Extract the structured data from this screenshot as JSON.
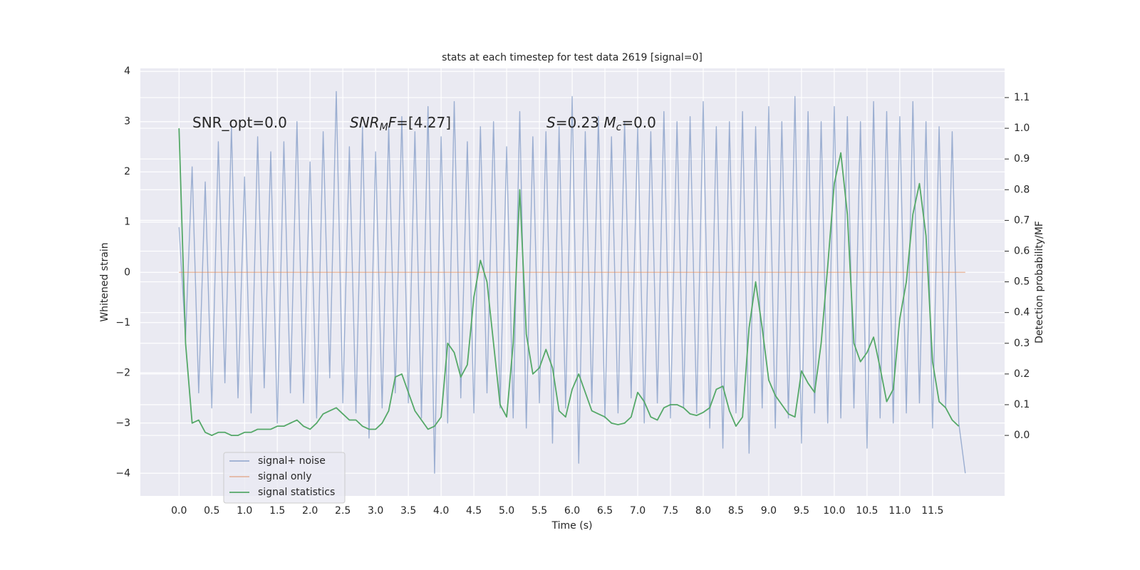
{
  "chart_data": {
    "type": "line",
    "title": "stats at each timestep for test data 2619 [signal=0]",
    "xlabel": "Time (s)",
    "ylabel": "Whitened strain",
    "y2label": "Detection probability/MF",
    "grid": true,
    "xlim": [
      -0.59,
      12.6
    ],
    "ylim": [
      -4.45,
      4.06
    ],
    "y2lim": [
      -0.197,
      1.195
    ],
    "xticks": [
      {
        "value": 0,
        "label": "0.0"
      },
      {
        "value": 0.5,
        "label": "0.5"
      },
      {
        "value": 1,
        "label": "1.0"
      },
      {
        "value": 1.5,
        "label": "1.5"
      },
      {
        "value": 2,
        "label": "2.0"
      },
      {
        "value": 2.5,
        "label": "2.5"
      },
      {
        "value": 3,
        "label": "3.0"
      },
      {
        "value": 3.5,
        "label": "3.5"
      },
      {
        "value": 4,
        "label": "4.0"
      },
      {
        "value": 4.5,
        "label": "4.5"
      },
      {
        "value": 5,
        "label": "5.0"
      },
      {
        "value": 5.5,
        "label": "5.5"
      },
      {
        "value": 6,
        "label": "6.0"
      },
      {
        "value": 6.5,
        "label": "6.5"
      },
      {
        "value": 7,
        "label": "7.0"
      },
      {
        "value": 7.5,
        "label": "7.5"
      },
      {
        "value": 8,
        "label": "8.0"
      },
      {
        "value": 8.5,
        "label": "8.5"
      },
      {
        "value": 9,
        "label": "9.0"
      },
      {
        "value": 9.5,
        "label": "9.5"
      },
      {
        "value": 10,
        "label": "10.0"
      },
      {
        "value": 10.5,
        "label": "10.5"
      },
      {
        "value": 11,
        "label": "11.0"
      },
      {
        "value": 11.5,
        "label": "11.5"
      }
    ],
    "yticks": [
      {
        "value": -4,
        "label": "−4"
      },
      {
        "value": -3,
        "label": "−3"
      },
      {
        "value": -2,
        "label": "−2"
      },
      {
        "value": -1,
        "label": "−1"
      },
      0,
      1,
      2,
      3,
      4
    ],
    "y2ticks": [
      {
        "value": 0,
        "label": "0.0"
      },
      {
        "value": 0.1,
        "label": "0.1"
      },
      {
        "value": 0.2,
        "label": "0.2"
      },
      {
        "value": 0.3,
        "label": "0.3"
      },
      {
        "value": 0.4,
        "label": "0.4"
      },
      {
        "value": 0.5,
        "label": "0.5"
      },
      {
        "value": 0.6,
        "label": "0.6"
      },
      {
        "value": 0.7,
        "label": "0.7"
      },
      {
        "value": 0.8,
        "label": "0.8"
      },
      {
        "value": 0.9,
        "label": "0.9"
      },
      {
        "value": 1,
        "label": "1.0"
      },
      {
        "value": 1.1,
        "label": "1.1"
      }
    ],
    "annotations": [
      [
        {
          "text": "SNR_opt=0.0",
          "style": "normal"
        }
      ],
      [
        {
          "text": "SNR",
          "style": "italic"
        },
        {
          "text": "M",
          "style": "sub"
        },
        {
          "text": "F",
          "style": "italic"
        },
        {
          "text": "=[4.27]",
          "style": "normal"
        }
      ],
      [
        {
          "text": "S",
          "style": "italic"
        },
        {
          "text": "=0.23   ",
          "style": "normal"
        },
        {
          "text": "M",
          "style": "italic"
        },
        {
          "text": "c",
          "style": "sub"
        },
        {
          "text": "=0.0",
          "style": "normal"
        }
      ]
    ],
    "series": [
      {
        "name": "signal+ noise",
        "color": "#4c72b0",
        "alpha": 0.5,
        "axis": "y",
        "x": [
          0.0,
          0.1,
          0.2,
          0.3,
          0.4,
          0.5,
          0.6,
          0.7,
          0.8,
          0.9,
          1.0,
          1.1,
          1.2,
          1.3,
          1.4,
          1.5,
          1.6,
          1.7,
          1.8,
          1.9,
          2.0,
          2.1,
          2.2,
          2.3,
          2.4,
          2.5,
          2.6,
          2.7,
          2.8,
          2.9,
          3.0,
          3.1,
          3.2,
          3.3,
          3.4,
          3.5,
          3.6,
          3.7,
          3.8,
          3.9,
          4.0,
          4.1,
          4.2,
          4.3,
          4.4,
          4.5,
          4.6,
          4.7,
          4.8,
          4.9,
          5.0,
          5.1,
          5.2,
          5.3,
          5.4,
          5.5,
          5.6,
          5.7,
          5.8,
          5.9,
          6.0,
          6.1,
          6.2,
          6.3,
          6.4,
          6.5,
          6.6,
          6.7,
          6.8,
          6.9,
          7.0,
          7.1,
          7.2,
          7.3,
          7.4,
          7.5,
          7.6,
          7.7,
          7.8,
          7.9,
          8.0,
          8.1,
          8.2,
          8.3,
          8.4,
          8.5,
          8.6,
          8.7,
          8.8,
          8.9,
          9.0,
          9.1,
          9.2,
          9.3,
          9.4,
          9.5,
          9.6,
          9.7,
          9.8,
          9.9,
          10.0,
          10.1,
          10.2,
          10.3,
          10.4,
          10.5,
          10.6,
          10.7,
          10.8,
          10.9,
          11.0,
          11.1,
          11.2,
          11.3,
          11.4,
          11.5,
          11.6,
          11.7,
          11.8,
          11.9,
          12.0
        ],
        "values": [
          0.9,
          -1.3,
          2.1,
          -2.4,
          1.8,
          -2.7,
          2.6,
          -2.2,
          2.9,
          -2.5,
          1.9,
          -2.8,
          2.7,
          -2.3,
          2.4,
          -3.0,
          2.6,
          -2.4,
          3.0,
          -2.6,
          2.2,
          -2.9,
          2.8,
          -2.1,
          3.6,
          -2.6,
          2.5,
          -2.8,
          2.9,
          -3.3,
          2.4,
          -2.7,
          2.9,
          -2.4,
          3.1,
          -2.6,
          2.8,
          -2.9,
          3.3,
          -4.0,
          2.7,
          -3.0,
          3.4,
          -2.5,
          2.6,
          -2.8,
          2.9,
          -2.4,
          3.0,
          -2.7,
          2.5,
          -2.9,
          3.2,
          -3.1,
          2.7,
          -2.6,
          2.8,
          -3.4,
          2.9,
          -2.7,
          3.5,
          -3.8,
          2.8,
          -2.6,
          3.1,
          -2.9,
          2.7,
          -2.8,
          3.0,
          -2.5,
          2.9,
          -3.0,
          2.8,
          -2.6,
          3.2,
          -2.9,
          3.0,
          -2.7,
          3.1,
          -2.8,
          3.4,
          -3.1,
          2.9,
          -3.5,
          3.0,
          -2.8,
          3.2,
          -3.6,
          2.9,
          -2.7,
          3.3,
          -3.1,
          3.0,
          -2.9,
          3.5,
          -3.4,
          3.2,
          -2.8,
          3.0,
          -3.0,
          3.3,
          -2.9,
          3.1,
          -2.7,
          3.0,
          -3.5,
          3.4,
          -2.9,
          3.2,
          -3.0,
          3.1,
          -2.8,
          3.4,
          -2.6,
          3.0,
          -3.1,
          2.9,
          -2.7,
          2.8,
          -3.0,
          -4.0
        ]
      },
      {
        "name": "signal only",
        "color": "#dd8452",
        "alpha": 0.5,
        "axis": "y",
        "x": [
          0.0,
          12.0
        ],
        "values": [
          0,
          0
        ]
      },
      {
        "name": "signal statistics",
        "color": "#55a868",
        "alpha": 1,
        "axis": "y2",
        "x": [
          0.0,
          0.1,
          0.2,
          0.3,
          0.4,
          0.5,
          0.6,
          0.7,
          0.8,
          0.9,
          1.0,
          1.1,
          1.2,
          1.3,
          1.4,
          1.5,
          1.6,
          1.7,
          1.8,
          1.9,
          2.0,
          2.1,
          2.2,
          2.3,
          2.4,
          2.5,
          2.6,
          2.7,
          2.8,
          2.9,
          3.0,
          3.1,
          3.2,
          3.3,
          3.4,
          3.5,
          3.6,
          3.7,
          3.8,
          3.9,
          4.0,
          4.1,
          4.2,
          4.3,
          4.4,
          4.5,
          4.6,
          4.7,
          4.8,
          4.9,
          5.0,
          5.1,
          5.2,
          5.3,
          5.4,
          5.5,
          5.6,
          5.7,
          5.8,
          5.9,
          6.0,
          6.1,
          6.2,
          6.3,
          6.4,
          6.5,
          6.6,
          6.7,
          6.8,
          6.9,
          7.0,
          7.1,
          7.2,
          7.3,
          7.4,
          7.5,
          7.6,
          7.7,
          7.8,
          7.9,
          8.0,
          8.1,
          8.2,
          8.3,
          8.4,
          8.5,
          8.6,
          8.7,
          8.8,
          8.9,
          9.0,
          9.1,
          9.2,
          9.3,
          9.4,
          9.5,
          9.6,
          9.7,
          9.8,
          9.9,
          10.0,
          10.1,
          10.2,
          10.3,
          10.4,
          10.5,
          10.6,
          10.7,
          10.8,
          10.9,
          11.0,
          11.1,
          11.2,
          11.3,
          11.4,
          11.5,
          11.6,
          11.7,
          11.8,
          11.9
        ],
        "values": [
          1.0,
          0.3,
          0.04,
          0.05,
          0.01,
          0.0,
          0.01,
          0.01,
          0.0,
          0.0,
          0.01,
          0.01,
          0.02,
          0.02,
          0.02,
          0.03,
          0.03,
          0.04,
          0.05,
          0.03,
          0.02,
          0.04,
          0.07,
          0.08,
          0.09,
          0.07,
          0.05,
          0.05,
          0.03,
          0.02,
          0.02,
          0.04,
          0.08,
          0.19,
          0.2,
          0.14,
          0.08,
          0.05,
          0.02,
          0.03,
          0.06,
          0.3,
          0.27,
          0.19,
          0.23,
          0.45,
          0.57,
          0.5,
          0.3,
          0.1,
          0.06,
          0.3,
          0.8,
          0.33,
          0.2,
          0.22,
          0.28,
          0.22,
          0.08,
          0.06,
          0.15,
          0.2,
          0.14,
          0.08,
          0.07,
          0.06,
          0.04,
          0.035,
          0.04,
          0.06,
          0.14,
          0.11,
          0.06,
          0.05,
          0.09,
          0.1,
          0.1,
          0.09,
          0.07,
          0.065,
          0.075,
          0.09,
          0.15,
          0.16,
          0.08,
          0.03,
          0.06,
          0.35,
          0.5,
          0.35,
          0.18,
          0.13,
          0.1,
          0.07,
          0.06,
          0.21,
          0.17,
          0.14,
          0.3,
          0.55,
          0.82,
          0.92,
          0.72,
          0.3,
          0.24,
          0.27,
          0.32,
          0.22,
          0.11,
          0.15,
          0.38,
          0.5,
          0.72,
          0.82,
          0.65,
          0.24,
          0.11,
          0.09,
          0.05,
          0.03
        ]
      }
    ]
  }
}
